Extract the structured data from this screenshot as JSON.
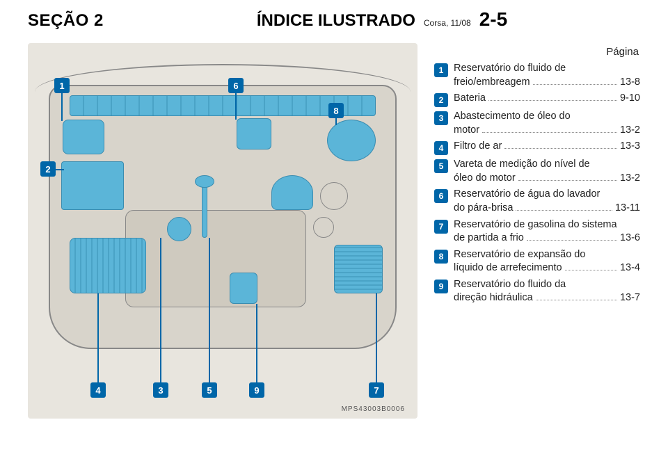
{
  "header": {
    "section": "SEÇÃO 2",
    "title": "ÍNDICE ILUSTRADO",
    "edition": "Corsa, 11/08",
    "page": "2-5"
  },
  "legend": {
    "page_label": "Página",
    "items": [
      {
        "num": "1",
        "lines": [
          "Reservatório do fluido de"
        ],
        "last_label": "freio/embreagem",
        "page": "13-8"
      },
      {
        "num": "2",
        "lines": [],
        "last_label": "Bateria",
        "page": "9-10"
      },
      {
        "num": "3",
        "lines": [
          "Abastecimento de óleo do"
        ],
        "last_label": "motor",
        "page": "13-2"
      },
      {
        "num": "4",
        "lines": [],
        "last_label": "Filtro de ar",
        "page": "13-3"
      },
      {
        "num": "5",
        "lines": [
          "Vareta de medição do nível de"
        ],
        "last_label": "óleo do motor",
        "page": "13-2"
      },
      {
        "num": "6",
        "lines": [
          "Reservatório de água do lavador"
        ],
        "last_label": "do pára-brisa",
        "page": "13-11"
      },
      {
        "num": "7",
        "lines": [
          "Reservatório de gasolina do sistema"
        ],
        "last_label": "de partida a frio",
        "page": "13-6"
      },
      {
        "num": "8",
        "lines": [
          "Reservatório de expansão do"
        ],
        "last_label": "líquido de arrefecimento",
        "page": "13-4"
      },
      {
        "num": "9",
        "lines": [
          "Reservatório do fluido da"
        ],
        "last_label": "direção hidráulica",
        "page": "13-7"
      }
    ]
  },
  "diagram": {
    "callouts": [
      "1",
      "2",
      "3",
      "4",
      "5",
      "6",
      "7",
      "8",
      "9"
    ],
    "code": "MPS43003B0006"
  }
}
